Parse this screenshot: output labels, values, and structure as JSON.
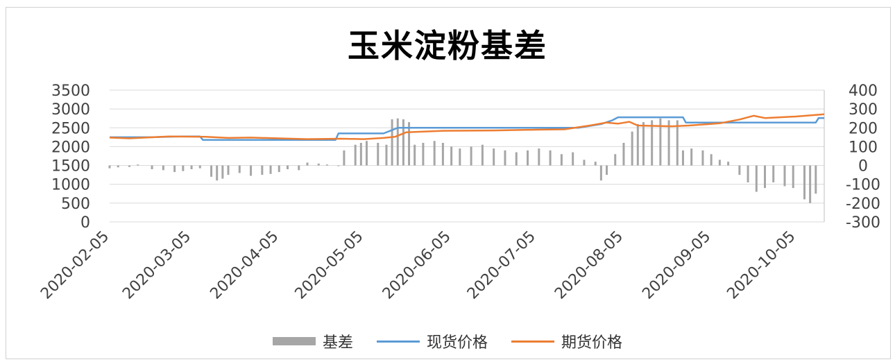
{
  "colors": {
    "basis": "#a6a6a6",
    "spot": "#5b9bd5",
    "futures": "#ed7d31",
    "grid": "#d9d9d9",
    "axis_text": "#404040"
  },
  "chart_data": {
    "type": "bar+line",
    "title": "玉米淀粉基差",
    "x_tick_labels": [
      "2020-02-05",
      "2020-03-05",
      "2020-04-05",
      "2020-05-05",
      "2020-06-05",
      "2020-07-05",
      "2020-08-05",
      "2020-09-05",
      "2020-10-05"
    ],
    "x_range": [
      "2020-02-05",
      "2020-10-15"
    ],
    "y_left": {
      "min": 0,
      "max": 3500,
      "ticks": [
        0,
        500,
        1000,
        1500,
        2000,
        2500,
        3000,
        3500
      ]
    },
    "y_right": {
      "min": -300,
      "max": 400,
      "ticks": [
        -300,
        -200,
        -100,
        0,
        100,
        200,
        300,
        400
      ]
    },
    "grid": true,
    "legend_position": "bottom",
    "series": [
      {
        "name": "基差",
        "type": "bar",
        "axis": "right",
        "points": [
          [
            "2020-02-05",
            -15
          ],
          [
            "2020-02-08",
            -10
          ],
          [
            "2020-02-12",
            -8
          ],
          [
            "2020-02-15",
            5
          ],
          [
            "2020-02-20",
            -20
          ],
          [
            "2020-02-24",
            -25
          ],
          [
            "2020-02-28",
            -35
          ],
          [
            "2020-03-02",
            -30
          ],
          [
            "2020-03-05",
            -20
          ],
          [
            "2020-03-08",
            -15
          ],
          [
            "2020-03-12",
            -60
          ],
          [
            "2020-03-14",
            -80
          ],
          [
            "2020-03-16",
            -70
          ],
          [
            "2020-03-18",
            -50
          ],
          [
            "2020-03-22",
            -40
          ],
          [
            "2020-03-26",
            -55
          ],
          [
            "2020-03-30",
            -50
          ],
          [
            "2020-04-02",
            -45
          ],
          [
            "2020-04-05",
            -35
          ],
          [
            "2020-04-08",
            -20
          ],
          [
            "2020-04-12",
            -25
          ],
          [
            "2020-04-15",
            15
          ],
          [
            "2020-04-19",
            10
          ],
          [
            "2020-04-22",
            5
          ],
          [
            "2020-04-26",
            0
          ],
          [
            "2020-04-28",
            80
          ],
          [
            "2020-05-02",
            110
          ],
          [
            "2020-05-04",
            120
          ],
          [
            "2020-05-06",
            130
          ],
          [
            "2020-05-10",
            120
          ],
          [
            "2020-05-13",
            110
          ],
          [
            "2020-05-15",
            245
          ],
          [
            "2020-05-17",
            250
          ],
          [
            "2020-05-19",
            245
          ],
          [
            "2020-05-21",
            230
          ],
          [
            "2020-05-23",
            110
          ],
          [
            "2020-05-26",
            120
          ],
          [
            "2020-05-30",
            130
          ],
          [
            "2020-06-02",
            120
          ],
          [
            "2020-06-05",
            100
          ],
          [
            "2020-06-08",
            90
          ],
          [
            "2020-06-12",
            100
          ],
          [
            "2020-06-16",
            110
          ],
          [
            "2020-06-20",
            90
          ],
          [
            "2020-06-24",
            80
          ],
          [
            "2020-06-28",
            70
          ],
          [
            "2020-07-02",
            80
          ],
          [
            "2020-07-06",
            90
          ],
          [
            "2020-07-10",
            80
          ],
          [
            "2020-07-14",
            60
          ],
          [
            "2020-07-18",
            70
          ],
          [
            "2020-07-22",
            30
          ],
          [
            "2020-07-26",
            20
          ],
          [
            "2020-07-28",
            -80
          ],
          [
            "2020-07-30",
            -50
          ],
          [
            "2020-08-02",
            60
          ],
          [
            "2020-08-05",
            120
          ],
          [
            "2020-08-08",
            180
          ],
          [
            "2020-08-10",
            220
          ],
          [
            "2020-08-12",
            230
          ],
          [
            "2020-08-15",
            240
          ],
          [
            "2020-08-18",
            250
          ],
          [
            "2020-08-21",
            240
          ],
          [
            "2020-08-24",
            240
          ],
          [
            "2020-08-26",
            80
          ],
          [
            "2020-08-29",
            90
          ],
          [
            "2020-09-02",
            80
          ],
          [
            "2020-09-05",
            60
          ],
          [
            "2020-09-08",
            30
          ],
          [
            "2020-09-11",
            20
          ],
          [
            "2020-09-15",
            -50
          ],
          [
            "2020-09-18",
            -90
          ],
          [
            "2020-09-21",
            -140
          ],
          [
            "2020-09-24",
            -120
          ],
          [
            "2020-09-27",
            -90
          ],
          [
            "2020-10-01",
            -110
          ],
          [
            "2020-10-04",
            -120
          ],
          [
            "2020-10-08",
            -180
          ],
          [
            "2020-10-10",
            -200
          ],
          [
            "2020-10-12",
            -150
          ]
        ]
      },
      {
        "name": "现货价格",
        "type": "line",
        "axis": "left",
        "points": [
          [
            "2020-02-05",
            2250
          ],
          [
            "2020-02-20",
            2250
          ],
          [
            "2020-03-01",
            2270
          ],
          [
            "2020-03-08",
            2270
          ],
          [
            "2020-03-09",
            2180
          ],
          [
            "2020-04-25",
            2180
          ],
          [
            "2020-04-26",
            2350
          ],
          [
            "2020-05-12",
            2350
          ],
          [
            "2020-05-17",
            2500
          ],
          [
            "2020-07-20",
            2500
          ],
          [
            "2020-07-28",
            2600
          ],
          [
            "2020-08-01",
            2700
          ],
          [
            "2020-08-03",
            2780
          ],
          [
            "2020-08-26",
            2780
          ],
          [
            "2020-08-27",
            2640
          ],
          [
            "2020-10-12",
            2640
          ],
          [
            "2020-10-13",
            2760
          ],
          [
            "2020-10-15",
            2760
          ]
        ]
      },
      {
        "name": "期货价格",
        "type": "line",
        "axis": "left",
        "points": [
          [
            "2020-02-05",
            2240
          ],
          [
            "2020-02-12",
            2220
          ],
          [
            "2020-02-26",
            2270
          ],
          [
            "2020-03-10",
            2260
          ],
          [
            "2020-03-18",
            2230
          ],
          [
            "2020-03-26",
            2240
          ],
          [
            "2020-04-05",
            2220
          ],
          [
            "2020-04-15",
            2200
          ],
          [
            "2020-04-27",
            2210
          ],
          [
            "2020-05-05",
            2200
          ],
          [
            "2020-05-12",
            2230
          ],
          [
            "2020-05-16",
            2260
          ],
          [
            "2020-05-20",
            2380
          ],
          [
            "2020-06-02",
            2420
          ],
          [
            "2020-06-20",
            2430
          ],
          [
            "2020-07-05",
            2450
          ],
          [
            "2020-07-15",
            2460
          ],
          [
            "2020-07-24",
            2560
          ],
          [
            "2020-07-30",
            2640
          ],
          [
            "2020-08-03",
            2610
          ],
          [
            "2020-08-07",
            2660
          ],
          [
            "2020-08-10",
            2560
          ],
          [
            "2020-08-22",
            2540
          ],
          [
            "2020-08-28",
            2560
          ],
          [
            "2020-09-08",
            2620
          ],
          [
            "2020-09-15",
            2720
          ],
          [
            "2020-09-20",
            2820
          ],
          [
            "2020-09-24",
            2760
          ],
          [
            "2020-10-05",
            2800
          ],
          [
            "2020-10-15",
            2860
          ]
        ]
      }
    ]
  }
}
